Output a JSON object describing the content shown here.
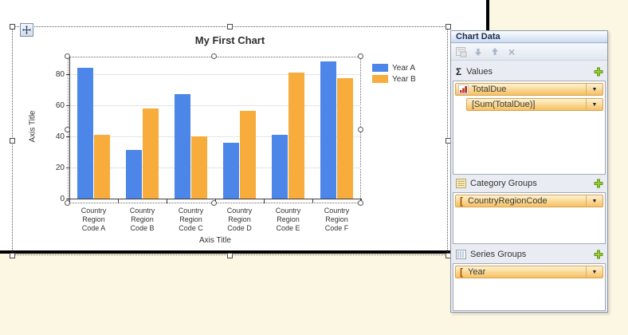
{
  "chart_data": {
    "type": "bar",
    "title": "My First Chart",
    "categories": [
      "Country Region Code A",
      "Country Region Code B",
      "Country Region Code C",
      "Country Region Code D",
      "Country Region Code E",
      "Country Region Code F"
    ],
    "series": [
      {
        "name": "Year A",
        "color": "#4C86E8",
        "values": [
          84,
          31,
          67,
          36,
          41,
          88
        ]
      },
      {
        "name": "Year B",
        "color": "#F8AC3C",
        "values": [
          41,
          58,
          40,
          56,
          81,
          77
        ]
      }
    ],
    "xlabel": "Axis Title",
    "ylabel": "Axis Title",
    "ylim": [
      0,
      90
    ],
    "yticks": [
      0,
      20,
      40,
      60,
      80
    ],
    "grid": true,
    "legend_position": "right"
  },
  "panel": {
    "title": "Chart Data",
    "toolbar_icons": [
      "properties-icon",
      "move-down-icon",
      "move-up-icon",
      "delete-icon"
    ],
    "sections": [
      {
        "label": "Values",
        "icon": "sigma-icon",
        "fields": [
          {
            "label": "TotalDue",
            "icon": "bar-chart-icon"
          },
          {
            "label": "[Sum(TotalDue)]",
            "icon": "none"
          }
        ]
      },
      {
        "label": "Category Groups",
        "icon": "category-list-icon",
        "fields": [
          {
            "label": "CountryRegionCode",
            "icon": "field-bracket-icon"
          }
        ]
      },
      {
        "label": "Series Groups",
        "icon": "series-grid-icon",
        "fields": [
          {
            "label": "Year",
            "icon": "field-bracket-icon"
          }
        ]
      }
    ]
  },
  "icons": {
    "sigma": "Σ",
    "bracket": "[",
    "dropdown": "▼",
    "delete": "×"
  },
  "colors": {
    "background_cream": "#FCF7E2",
    "series_blue": "#4C86E8",
    "series_orange": "#F8AC3C",
    "pill_border": "#D8A351",
    "plus_green": "#97CC34"
  }
}
